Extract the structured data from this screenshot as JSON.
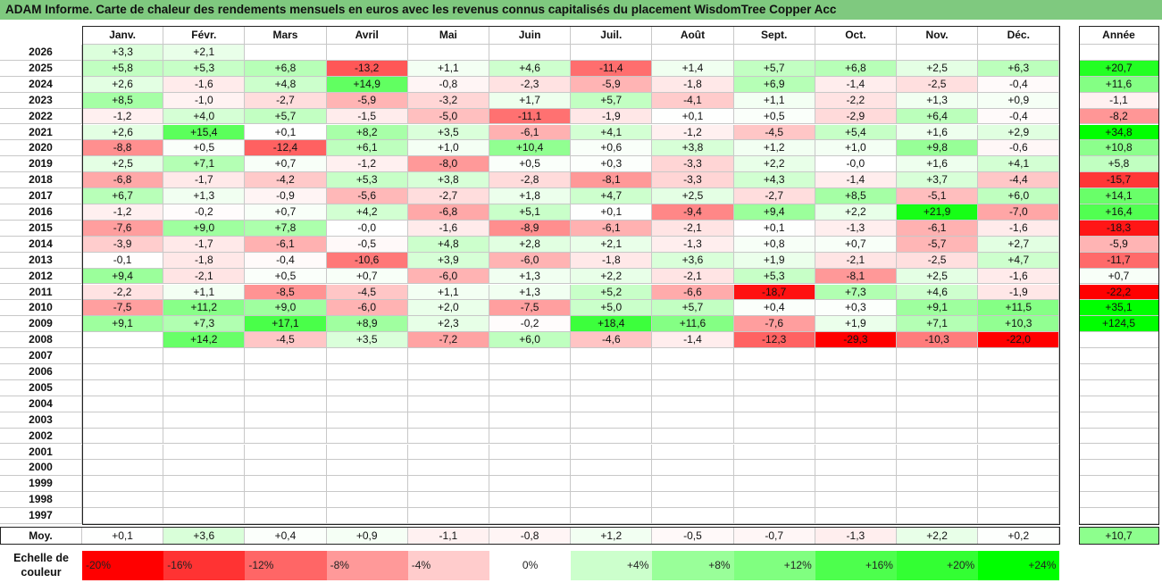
{
  "title": "ADAM Informe. Carte de chaleur des rendements mensuels en euros avec les revenus connus capitalisés du placement WisdomTree Copper Acc",
  "chart_data": {
    "type": "heatmap",
    "months": [
      "Janv.",
      "Févr.",
      "Mars",
      "Avril",
      "Mai",
      "Juin",
      "Juil.",
      "Août",
      "Sept.",
      "Oct.",
      "Nov.",
      "Déc."
    ],
    "year_header": "Année",
    "years": [
      {
        "year": "2026",
        "values": [
          "+3,3",
          "+2,1",
          "",
          "",
          "",
          "",
          "",
          "",
          "",
          "",
          "",
          ""
        ],
        "annual": ""
      },
      {
        "year": "2025",
        "values": [
          "+5,8",
          "+5,3",
          "+6,8",
          "-13,2",
          "+1,1",
          "+4,6",
          "-11,4",
          "+1,4",
          "+5,7",
          "+6,8",
          "+2,5",
          "+6,3"
        ],
        "annual": "+20,7"
      },
      {
        "year": "2024",
        "values": [
          "+2,6",
          "-1,6",
          "+4,8",
          "+14,9",
          "-0,8",
          "-2,3",
          "-5,9",
          "-1,8",
          "+6,9",
          "-1,4",
          "-2,5",
          "-0,4"
        ],
        "annual": "+11,6"
      },
      {
        "year": "2023",
        "values": [
          "+8,5",
          "-1,0",
          "-2,7",
          "-5,9",
          "-3,2",
          "+1,7",
          "+5,7",
          "-4,1",
          "+1,1",
          "-2,2",
          "+1,3",
          "+0,9"
        ],
        "annual": "-1,1"
      },
      {
        "year": "2022",
        "values": [
          "-1,2",
          "+4,0",
          "+5,7",
          "-1,5",
          "-5,0",
          "-11,1",
          "-1,9",
          "+0,1",
          "+0,5",
          "-2,9",
          "+6,4",
          "-0,4"
        ],
        "annual": "-8,2"
      },
      {
        "year": "2021",
        "values": [
          "+2,6",
          "+15,4",
          "+0,1",
          "+8,2",
          "+3,5",
          "-6,1",
          "+4,1",
          "-1,2",
          "-4,5",
          "+5,4",
          "+1,6",
          "+2,9"
        ],
        "annual": "+34,8"
      },
      {
        "year": "2020",
        "values": [
          "-8,8",
          "+0,5",
          "-12,4",
          "+6,1",
          "+1,0",
          "+10,4",
          "+0,6",
          "+3,8",
          "+1,2",
          "+1,0",
          "+9,8",
          "-0,6"
        ],
        "annual": "+10,8"
      },
      {
        "year": "2019",
        "values": [
          "+2,5",
          "+7,1",
          "+0,7",
          "-1,2",
          "-8,0",
          "+0,5",
          "+0,3",
          "-3,3",
          "+2,2",
          "-0,0",
          "+1,6",
          "+4,1"
        ],
        "annual": "+5,8"
      },
      {
        "year": "2018",
        "values": [
          "-6,8",
          "-1,7",
          "-4,2",
          "+5,3",
          "+3,8",
          "-2,8",
          "-8,1",
          "-3,3",
          "+4,3",
          "-1,4",
          "+3,7",
          "-4,4"
        ],
        "annual": "-15,7"
      },
      {
        "year": "2017",
        "values": [
          "+6,7",
          "+1,3",
          "-0,9",
          "-5,6",
          "-2,7",
          "+1,8",
          "+4,7",
          "+2,5",
          "-2,7",
          "+8,5",
          "-5,1",
          "+6,0"
        ],
        "annual": "+14,1"
      },
      {
        "year": "2016",
        "values": [
          "-1,2",
          "-0,2",
          "+0,7",
          "+4,2",
          "-6,8",
          "+5,1",
          "+0,1",
          "-9,4",
          "+9,4",
          "+2,2",
          "+21,9",
          "-7,0"
        ],
        "annual": "+16,4"
      },
      {
        "year": "2015",
        "values": [
          "-7,6",
          "+9,0",
          "+7,8",
          "-0,0",
          "-1,6",
          "-8,9",
          "-6,1",
          "-2,1",
          "+0,1",
          "-1,3",
          "-6,1",
          "-1,6"
        ],
        "annual": "-18,3"
      },
      {
        "year": "2014",
        "values": [
          "-3,9",
          "-1,7",
          "-6,1",
          "-0,5",
          "+4,8",
          "+2,8",
          "+2,1",
          "-1,3",
          "+0,8",
          "+0,7",
          "-5,7",
          "+2,7"
        ],
        "annual": "-5,9"
      },
      {
        "year": "2013",
        "values": [
          "-0,1",
          "-1,8",
          "-0,4",
          "-10,6",
          "+3,9",
          "-6,0",
          "-1,8",
          "+3,6",
          "+1,9",
          "-2,1",
          "-2,5",
          "+4,7"
        ],
        "annual": "-11,7"
      },
      {
        "year": "2012",
        "values": [
          "+9,4",
          "-2,1",
          "+0,5",
          "+0,7",
          "-6,0",
          "+1,3",
          "+2,2",
          "-2,1",
          "+5,3",
          "-8,1",
          "+2,5",
          "-1,6"
        ],
        "annual": "+0,7"
      },
      {
        "year": "2011",
        "values": [
          "-2,2",
          "+1,1",
          "-8,5",
          "-4,5",
          "+1,1",
          "+1,3",
          "+5,2",
          "-6,6",
          "-18,7",
          "+7,3",
          "+4,6",
          "-1,9"
        ],
        "annual": "-22,2"
      },
      {
        "year": "2010",
        "values": [
          "-7,5",
          "+11,2",
          "+9,0",
          "-6,0",
          "+2,0",
          "-7,5",
          "+5,0",
          "+5,7",
          "+0,4",
          "+0,3",
          "+9,1",
          "+11,5"
        ],
        "annual": "+35,1"
      },
      {
        "year": "2009",
        "values": [
          "+9,1",
          "+7,3",
          "+17,1",
          "+8,9",
          "+2,3",
          "-0,2",
          "+18,4",
          "+11,6",
          "-7,6",
          "+1,9",
          "+7,1",
          "+10,3"
        ],
        "annual": "+124,5"
      },
      {
        "year": "2008",
        "values": [
          "",
          "+14,2",
          "-4,5",
          "+3,5",
          "-7,2",
          "+6,0",
          "-4,6",
          "-1,4",
          "-12,3",
          "-29,3",
          "-10,3",
          "-22,0"
        ],
        "annual": ""
      },
      {
        "year": "2007",
        "values": [
          "",
          "",
          "",
          "",
          "",
          "",
          "",
          "",
          "",
          "",
          "",
          ""
        ],
        "annual": ""
      },
      {
        "year": "2006",
        "values": [
          "",
          "",
          "",
          "",
          "",
          "",
          "",
          "",
          "",
          "",
          "",
          ""
        ],
        "annual": ""
      },
      {
        "year": "2005",
        "values": [
          "",
          "",
          "",
          "",
          "",
          "",
          "",
          "",
          "",
          "",
          "",
          ""
        ],
        "annual": ""
      },
      {
        "year": "2004",
        "values": [
          "",
          "",
          "",
          "",
          "",
          "",
          "",
          "",
          "",
          "",
          "",
          ""
        ],
        "annual": ""
      },
      {
        "year": "2003",
        "values": [
          "",
          "",
          "",
          "",
          "",
          "",
          "",
          "",
          "",
          "",
          "",
          ""
        ],
        "annual": ""
      },
      {
        "year": "2002",
        "values": [
          "",
          "",
          "",
          "",
          "",
          "",
          "",
          "",
          "",
          "",
          "",
          ""
        ],
        "annual": ""
      },
      {
        "year": "2001",
        "values": [
          "",
          "",
          "",
          "",
          "",
          "",
          "",
          "",
          "",
          "",
          "",
          ""
        ],
        "annual": ""
      },
      {
        "year": "2000",
        "values": [
          "",
          "",
          "",
          "",
          "",
          "",
          "",
          "",
          "",
          "",
          "",
          ""
        ],
        "annual": ""
      },
      {
        "year": "1999",
        "values": [
          "",
          "",
          "",
          "",
          "",
          "",
          "",
          "",
          "",
          "",
          "",
          ""
        ],
        "annual": ""
      },
      {
        "year": "1998",
        "values": [
          "",
          "",
          "",
          "",
          "",
          "",
          "",
          "",
          "",
          "",
          "",
          ""
        ],
        "annual": ""
      },
      {
        "year": "1997",
        "values": [
          "",
          "",
          "",
          "",
          "",
          "",
          "",
          "",
          "",
          "",
          "",
          ""
        ],
        "annual": ""
      }
    ],
    "average": {
      "label": "Moy.",
      "values": [
        "+0,1",
        "+3,6",
        "+0,4",
        "+0,9",
        "-1,1",
        "-0,8",
        "+1,2",
        "-0,5",
        "-0,7",
        "-1,3",
        "+2,2",
        "+0,2"
      ],
      "annual": "+10,7"
    },
    "color_scale": {
      "label": "Echelle de couleur",
      "steps": [
        {
          "label": "-20%",
          "value": -20,
          "color": "#ff0000"
        },
        {
          "label": "-16%",
          "value": -16,
          "color": "#ff3333"
        },
        {
          "label": "-12%",
          "value": -12,
          "color": "#ff6666"
        },
        {
          "label": "-8%",
          "value": -8,
          "color": "#ff9999"
        },
        {
          "label": "-4%",
          "value": -4,
          "color": "#ffcccc"
        },
        {
          "label": "0%",
          "value": 0,
          "color": "#ffffff"
        },
        {
          "label": "+4%",
          "value": 4,
          "color": "#ccffcc"
        },
        {
          "label": "+8%",
          "value": 8,
          "color": "#99ff99"
        },
        {
          "label": "+12%",
          "value": 12,
          "color": "#80ff80"
        },
        {
          "label": "+16%",
          "value": 16,
          "color": "#4dff4d"
        },
        {
          "label": "+20%",
          "value": 20,
          "color": "#33ff33"
        },
        {
          "label": "+24%",
          "value": 24,
          "color": "#00ff00"
        }
      ]
    }
  }
}
